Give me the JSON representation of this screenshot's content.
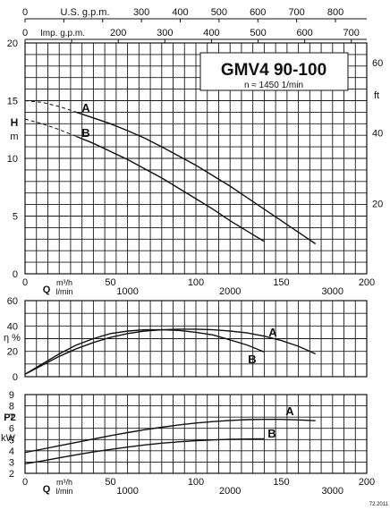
{
  "chart_data": [
    {
      "type": "line",
      "title": "GMV4 90-100",
      "subtitle": "n ≈ 1450 1/min",
      "ylabel_lines": [
        "H",
        "m"
      ],
      "ylabel_right": "ft",
      "xlabel_primary_lines": [
        "Q",
        "m³/h",
        "l/min"
      ],
      "top_axis_1_label": "U.S. g.p.m.",
      "top_axis_2_label": "Imp. g.p.m.",
      "xlim": [
        0,
        200
      ],
      "ylim": [
        0,
        20
      ],
      "x_ticks": [
        0,
        50,
        100,
        150,
        200
      ],
      "x_ticks_lmin": [
        1000,
        2000,
        3000
      ],
      "y_ticks": [
        0,
        5,
        10,
        15,
        20
      ],
      "y_ticks_ft": [
        20,
        40,
        60
      ],
      "top_ticks_usgpm": [
        0,
        100,
        200,
        300,
        400,
        500,
        600,
        700,
        800
      ],
      "top_ticks_impgpm": [
        0,
        100,
        200,
        300,
        400,
        500,
        600,
        700
      ],
      "grid": true,
      "series": [
        {
          "name": "A",
          "x": [
            0,
            10,
            20,
            30,
            40,
            50,
            60,
            70,
            80,
            90,
            100,
            110,
            120,
            130,
            140,
            150,
            160,
            170
          ],
          "y": [
            15.0,
            14.85,
            14.5,
            14.0,
            13.5,
            13.0,
            12.4,
            11.75,
            11.0,
            10.2,
            9.4,
            8.5,
            7.6,
            6.6,
            5.6,
            4.6,
            3.6,
            2.6
          ],
          "dashed_until_x": 30
        },
        {
          "name": "B",
          "x": [
            0,
            10,
            20,
            30,
            40,
            50,
            60,
            70,
            80,
            90,
            100,
            110,
            120,
            130,
            140
          ],
          "y": [
            13.4,
            13.0,
            12.5,
            11.9,
            11.3,
            10.6,
            9.9,
            9.1,
            8.3,
            7.4,
            6.5,
            5.6,
            4.6,
            3.7,
            2.8
          ],
          "dashed_until_x": 30
        }
      ]
    },
    {
      "type": "line",
      "ylabel": "η %",
      "xlim": [
        0,
        200
      ],
      "ylim": [
        0,
        60
      ],
      "y_ticks": [
        0,
        20,
        40,
        60
      ],
      "grid": true,
      "series": [
        {
          "name": "A",
          "x": [
            0,
            10,
            20,
            30,
            40,
            50,
            60,
            70,
            80,
            90,
            100,
            110,
            120,
            130,
            140,
            150,
            160,
            170
          ],
          "y": [
            2,
            9,
            16,
            22,
            27,
            31,
            34,
            36,
            37,
            37.5,
            37.5,
            37,
            36,
            34.5,
            32,
            28.5,
            24,
            18
          ]
        },
        {
          "name": "B",
          "x": [
            0,
            10,
            20,
            30,
            40,
            50,
            60,
            70,
            80,
            90,
            100,
            110,
            120,
            130,
            140
          ],
          "y": [
            2,
            10,
            18,
            25,
            30,
            34,
            36,
            37,
            37,
            36.5,
            35,
            33,
            29,
            25,
            19.5
          ]
        }
      ]
    },
    {
      "type": "line",
      "ylabel_lines": [
        "P2",
        "kW"
      ],
      "xlabel_primary_lines": [
        "Q",
        "m³/h",
        "l/min"
      ],
      "xlim": [
        0,
        200
      ],
      "ylim": [
        2,
        9
      ],
      "x_ticks": [
        0,
        50,
        100,
        150,
        200
      ],
      "x_ticks_lmin": [
        1000,
        2000,
        3000
      ],
      "y_ticks": [
        2,
        3,
        4,
        5,
        6,
        7,
        8,
        9
      ],
      "grid": true,
      "series": [
        {
          "name": "A",
          "x": [
            0,
            10,
            20,
            30,
            40,
            50,
            60,
            70,
            80,
            90,
            100,
            110,
            120,
            130,
            140,
            150,
            160,
            170
          ],
          "y": [
            3.85,
            4.15,
            4.45,
            4.75,
            5.05,
            5.35,
            5.62,
            5.87,
            6.1,
            6.3,
            6.47,
            6.6,
            6.7,
            6.77,
            6.8,
            6.8,
            6.75,
            6.68
          ]
        },
        {
          "name": "B",
          "x": [
            0,
            10,
            20,
            30,
            40,
            50,
            60,
            70,
            80,
            90,
            100,
            110,
            120,
            130,
            140
          ],
          "y": [
            2.85,
            3.1,
            3.38,
            3.65,
            3.9,
            4.12,
            4.33,
            4.52,
            4.68,
            4.8,
            4.9,
            4.97,
            5.02,
            5.05,
            5.06
          ]
        }
      ]
    }
  ],
  "footer_code": "72.2011"
}
